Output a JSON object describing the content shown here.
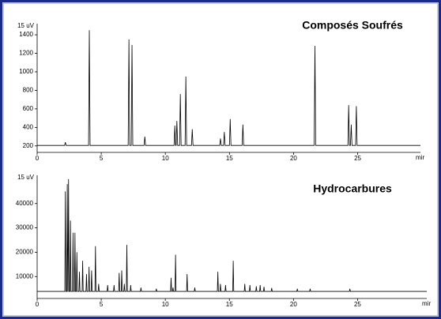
{
  "chart_data": [
    {
      "type": "line",
      "title": "Composés Soufrés",
      "y_label": "15 uV",
      "x_label": "mir",
      "color": "#000000",
      "x": [
        0,
        2.14,
        2.2,
        2.26,
        4.01,
        4.07,
        4.13,
        7.1,
        7.16,
        7.22,
        7.34,
        7.4,
        7.46,
        8.34,
        8.4,
        8.46,
        10.68,
        10.74,
        10.8,
        10.84,
        10.9,
        10.96,
        11.11,
        11.17,
        11.23,
        11.54,
        11.6,
        11.66,
        12.04,
        12.1,
        12.16,
        14.24,
        14.3,
        14.36,
        14.54,
        14.6,
        14.66,
        15.0,
        15.06,
        15.12,
        15.99,
        16.05,
        16.11,
        21.61,
        21.67,
        21.73,
        24.24,
        24.3,
        24.36,
        24.44,
        24.5,
        24.56,
        24.84,
        24.9,
        24.96,
        29.9
      ],
      "values": [
        205,
        205,
        240,
        205,
        205,
        1450,
        205,
        205,
        1350,
        205,
        205,
        1290,
        205,
        205,
        300,
        205,
        205,
        420,
        205,
        205,
        470,
        205,
        205,
        760,
        205,
        205,
        950,
        205,
        205,
        380,
        205,
        205,
        280,
        205,
        205,
        350,
        205,
        205,
        490,
        205,
        205,
        430,
        205,
        205,
        1280,
        205,
        205,
        640,
        205,
        205,
        430,
        205,
        205,
        630,
        205,
        205
      ],
      "xlim": [
        0,
        29.9
      ],
      "ylim": [
        130,
        1520
      ],
      "xticks": [
        0,
        5,
        10,
        15,
        20,
        25
      ],
      "yticks": [
        200,
        400,
        600,
        800,
        1000,
        1200,
        1400
      ]
    },
    {
      "type": "line",
      "title": "Hydrocarbures",
      "y_label": "15 uV",
      "x_label": "mir",
      "color": "#000000",
      "x": [
        0,
        2.16,
        2.2,
        2.24,
        2.31,
        2.35,
        2.39,
        2.41,
        2.45,
        2.49,
        2.56,
        2.6,
        2.64,
        2.76,
        2.8,
        2.84,
        2.91,
        2.95,
        2.99,
        3.06,
        3.1,
        3.14,
        3.26,
        3.3,
        3.34,
        3.51,
        3.55,
        3.59,
        3.81,
        3.85,
        3.89,
        4.01,
        4.05,
        4.09,
        4.21,
        4.25,
        4.29,
        4.51,
        4.55,
        4.59,
        4.76,
        4.8,
        4.84,
        5.46,
        5.5,
        5.54,
        5.96,
        6,
        6.04,
        6.36,
        6.4,
        6.44,
        6.56,
        6.6,
        6.64,
        6.76,
        6.8,
        6.84,
        6.96,
        7,
        7.04,
        7.26,
        7.3,
        7.34,
        8.06,
        8.1,
        8.14,
        9.26,
        9.3,
        9.34,
        10.41,
        10.45,
        10.49,
        10.56,
        10.6,
        10.64,
        10.76,
        10.8,
        10.84,
        11.66,
        11.7,
        11.74,
        12.26,
        12.3,
        12.34,
        14.06,
        14.1,
        14.14,
        14.26,
        14.3,
        14.34,
        14.66,
        14.7,
        14.74,
        15.26,
        15.3,
        15.34,
        16.16,
        16.2,
        16.24,
        16.56,
        16.6,
        16.64,
        17.06,
        17.1,
        17.14,
        17.36,
        17.4,
        17.44,
        17.66,
        17.7,
        17.74,
        18.26,
        18.3,
        18.34,
        20.26,
        20.3,
        20.34,
        21.26,
        21.3,
        21.34,
        24.36,
        24.4,
        24.44,
        30.4
      ],
      "values": [
        3900,
        3900,
        45000,
        3900,
        3900,
        48000,
        3900,
        3900,
        50000,
        3900,
        3900,
        33000,
        3900,
        3900,
        28000,
        3900,
        3900,
        28000,
        3900,
        3900,
        20000,
        3900,
        3900,
        12000,
        3900,
        3900,
        16500,
        3900,
        3900,
        11000,
        3900,
        3900,
        14000,
        3900,
        3900,
        12500,
        3900,
        3900,
        22500,
        3900,
        3900,
        7000,
        3900,
        3900,
        6500,
        3900,
        3900,
        6500,
        3900,
        3900,
        11500,
        3900,
        3900,
        12500,
        3900,
        3900,
        7000,
        3900,
        3900,
        23000,
        3900,
        3900,
        6500,
        3900,
        3900,
        5500,
        3900,
        3900,
        5000,
        3900,
        3900,
        9500,
        3900,
        3900,
        5500,
        3900,
        3900,
        19000,
        3900,
        3900,
        11000,
        3900,
        3900,
        5500,
        3900,
        3900,
        12000,
        3900,
        3900,
        7000,
        3900,
        3900,
        6500,
        3900,
        3900,
        16500,
        3900,
        3900,
        7000,
        3900,
        3900,
        6500,
        3900,
        3900,
        6000,
        3900,
        3900,
        6500,
        3900,
        3900,
        5800,
        3900,
        3900,
        5300,
        3900,
        3900,
        5000,
        3900,
        3900,
        5000,
        3900,
        3900,
        5000,
        3900,
        3900
      ],
      "xlim": [
        0,
        30.4
      ],
      "ylim": [
        1000,
        51600
      ],
      "xticks": [
        0,
        5,
        10,
        15,
        20,
        25
      ],
      "yticks": [
        10000,
        20000,
        30000,
        40000
      ]
    }
  ]
}
